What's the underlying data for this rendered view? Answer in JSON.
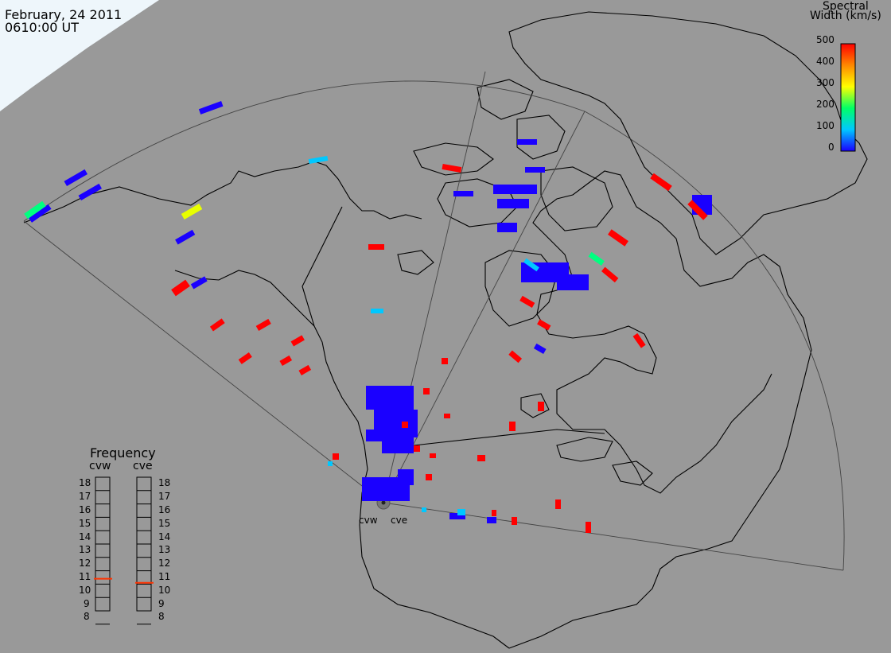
{
  "header": {
    "date": "February, 24 2011",
    "time": "0610:00 UT"
  },
  "colorbar": {
    "title_line1": "Spectral",
    "title_line2": "Width (km/s)",
    "ticks": [
      "500",
      "400",
      "300",
      "200",
      "100",
      "0"
    ],
    "range": [
      0,
      500
    ],
    "colors": [
      "#1a00ff",
      "#00c8ff",
      "#00ff66",
      "#ffff00",
      "#ff8800",
      "#ff0000"
    ]
  },
  "frequency_panel": {
    "title": "Frequency",
    "radars": [
      "cvw",
      "cve"
    ],
    "ticks": [
      "18",
      "17",
      "16",
      "15",
      "14",
      "13",
      "12",
      "11",
      "10",
      "9",
      "8"
    ],
    "marker_color": "#ff3300",
    "cvw_frequency_mhz": 10.9,
    "cve_frequency_mhz": 10.6
  },
  "sites": [
    "cvw",
    "cve"
  ],
  "colors": {
    "background": "#999999",
    "coast": "#000000",
    "fov": "#444444",
    "ice": "#eef6fb"
  }
}
